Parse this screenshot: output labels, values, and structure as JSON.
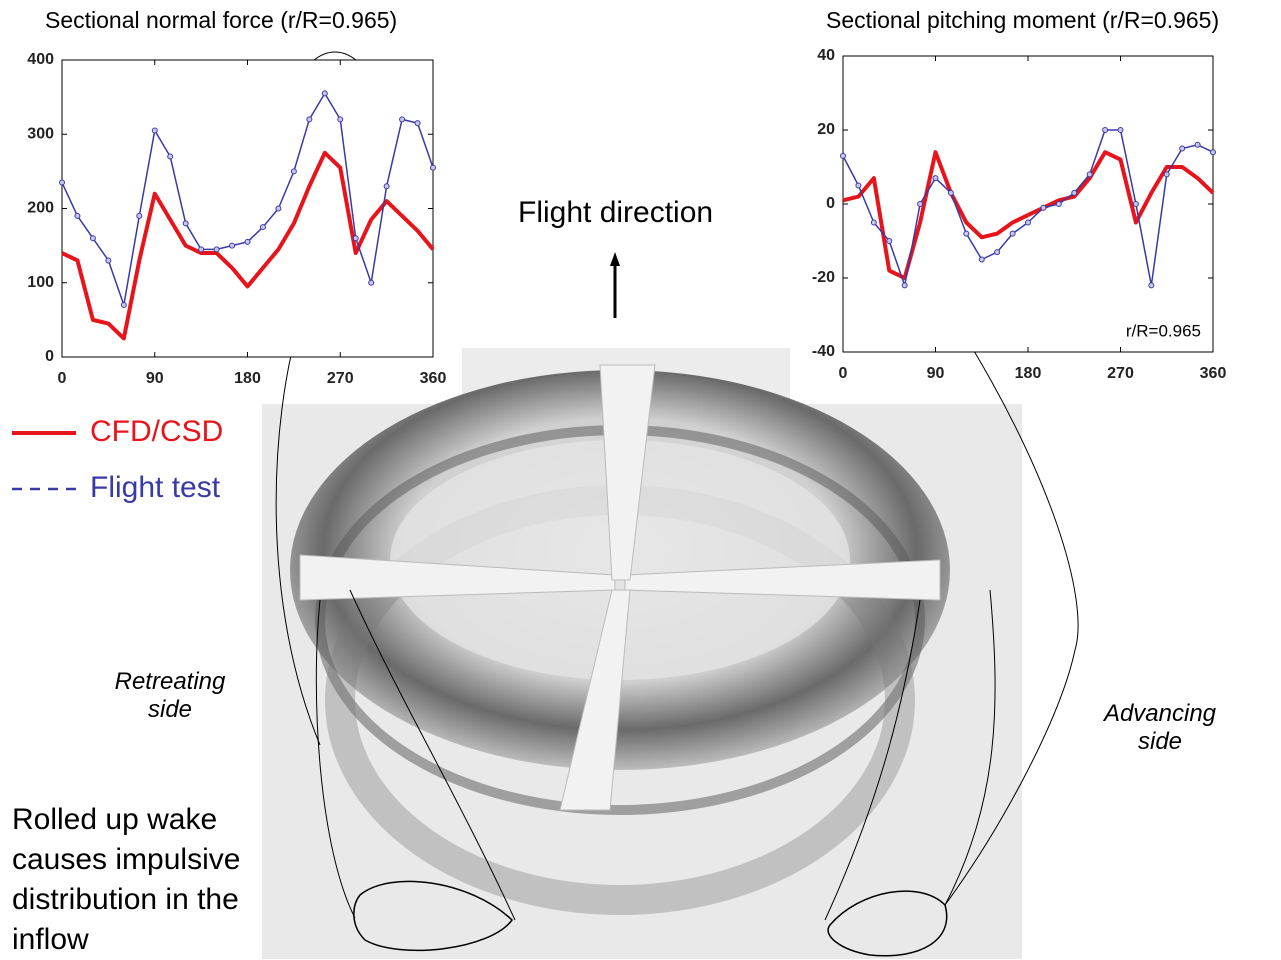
{
  "chart_data": [
    {
      "type": "line",
      "title": "Sectional  normal force (r/R=0.965)",
      "x": [
        0,
        15,
        30,
        45,
        60,
        75,
        90,
        105,
        120,
        135,
        150,
        165,
        180,
        195,
        210,
        225,
        240,
        255,
        270,
        285,
        300,
        315,
        330,
        345,
        360
      ],
      "series": [
        {
          "name": "CFD/CSD",
          "color": "#e8141b",
          "values": [
            140,
            130,
            50,
            45,
            25,
            130,
            220,
            185,
            150,
            140,
            140,
            120,
            95,
            120,
            145,
            180,
            230,
            275,
            255,
            140,
            185,
            210,
            190,
            170,
            145
          ]
        },
        {
          "name": "Flight test",
          "color": "#3a3aa6",
          "marker": "o",
          "values": [
            235,
            190,
            160,
            130,
            70,
            190,
            305,
            270,
            180,
            145,
            145,
            150,
            155,
            175,
            200,
            250,
            320,
            355,
            320,
            160,
            100,
            230,
            320,
            315,
            255
          ]
        }
      ],
      "xlim": [
        0,
        360
      ],
      "xticks": [
        0,
        90,
        180,
        270,
        360
      ],
      "ylim": [
        0,
        400
      ],
      "yticks": [
        0,
        100,
        200,
        300,
        400
      ]
    },
    {
      "type": "line",
      "title": "Sectional pitching moment (r/R=0.965)",
      "annotation": "r/R=0.965",
      "x": [
        0,
        15,
        30,
        45,
        60,
        75,
        90,
        105,
        120,
        135,
        150,
        165,
        180,
        195,
        210,
        225,
        240,
        255,
        270,
        285,
        300,
        315,
        330,
        345,
        360
      ],
      "series": [
        {
          "color": "#e8141b",
          "values": [
            1,
            2,
            7,
            -18,
            -20,
            -5,
            14,
            3,
            -5,
            -9,
            -8,
            -5,
            -3,
            -1,
            1,
            2,
            7,
            14,
            12,
            -5,
            3,
            10,
            10,
            7,
            3
          ]
        },
        {
          "color": "#3a3aa6",
          "marker": "o",
          "values": [
            13,
            5,
            -5,
            -10,
            -22,
            0,
            7,
            3,
            -8,
            -15,
            -13,
            -8,
            -5,
            -1,
            0,
            3,
            8,
            20,
            20,
            0,
            -22,
            8,
            15,
            16,
            14
          ]
        }
      ],
      "xlim": [
        0,
        360
      ],
      "xticks": [
        0,
        90,
        180,
        270,
        360
      ],
      "ylim": [
        -40,
        40
      ],
      "yticks": [
        -40,
        -20,
        0,
        20,
        40
      ]
    }
  ],
  "slide": {
    "flight_direction": "Flight direction",
    "retreating": "Retreating side",
    "advancing": "Advancing side",
    "wake_note": "Rolled up wake causes impulsive distribution in the inflow"
  }
}
